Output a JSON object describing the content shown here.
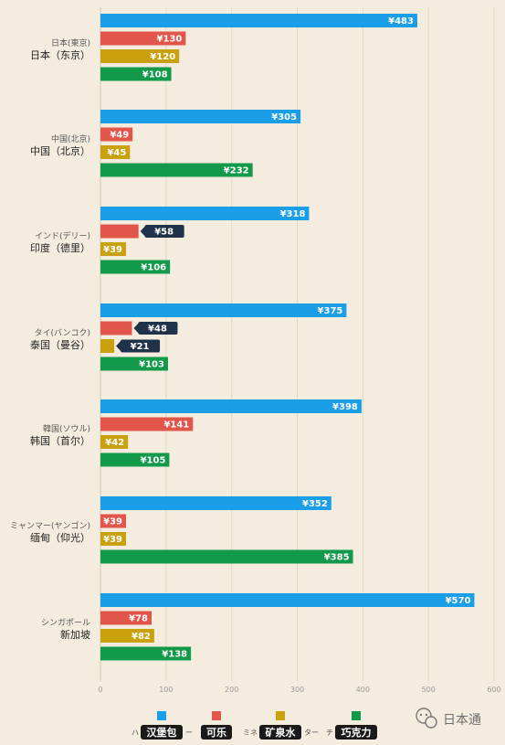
{
  "chart_data": {
    "type": "bar",
    "orientation": "horizontal",
    "categories": [
      {
        "label_jp": "日本(東京)",
        "label_cn": "日本（东京）"
      },
      {
        "label_jp": "中国(北京)",
        "label_cn": "中国（北京）"
      },
      {
        "label_jp": "インド(デリー)",
        "label_cn": "印度（德里）"
      },
      {
        "label_jp": "タイ(バンコク)",
        "label_cn": "泰国（曼谷）"
      },
      {
        "label_jp": "韓国(ソウル)",
        "label_cn": "韩国（首尔）"
      },
      {
        "label_jp": "ミャンマー(ヤンゴン)",
        "label_cn": "缅甸（仰光）"
      },
      {
        "label_jp": "シンガポール",
        "label_cn": "新加坡"
      }
    ],
    "series": [
      {
        "name": "汉堡包",
        "name_jp": "ハ",
        "name_jp_suffix": "ー",
        "color": "#1a9ee8",
        "values": [
          483,
          305,
          318,
          375,
          398,
          352,
          570
        ]
      },
      {
        "name": "可乐",
        "name_jp": "",
        "name_jp_suffix": "",
        "color": "#e2554a",
        "values": [
          130,
          49,
          58,
          48,
          141,
          39,
          78
        ]
      },
      {
        "name": "矿泉水",
        "name_jp": "ミネ",
        "name_jp_suffix": "ター",
        "color": "#c9a00e",
        "values": [
          120,
          45,
          39,
          21,
          42,
          39,
          82
        ]
      },
      {
        "name": "巧克力",
        "name_jp": "チ",
        "name_jp_suffix": "",
        "color": "#12994a",
        "values": [
          108,
          232,
          106,
          103,
          105,
          385,
          138
        ]
      }
    ],
    "value_prefix": "¥",
    "xlim": [
      0,
      600
    ],
    "xticks": [
      0,
      100,
      200,
      300,
      400,
      500,
      600
    ],
    "grid": true,
    "legend_position": "bottom",
    "callouts": [
      {
        "category_index": 2,
        "series_index": 1
      },
      {
        "category_index": 3,
        "series_index": 1
      },
      {
        "category_index": 3,
        "series_index": 2
      }
    ]
  },
  "watermark": {
    "icon": "wechat-icon",
    "text": "日本通"
  }
}
